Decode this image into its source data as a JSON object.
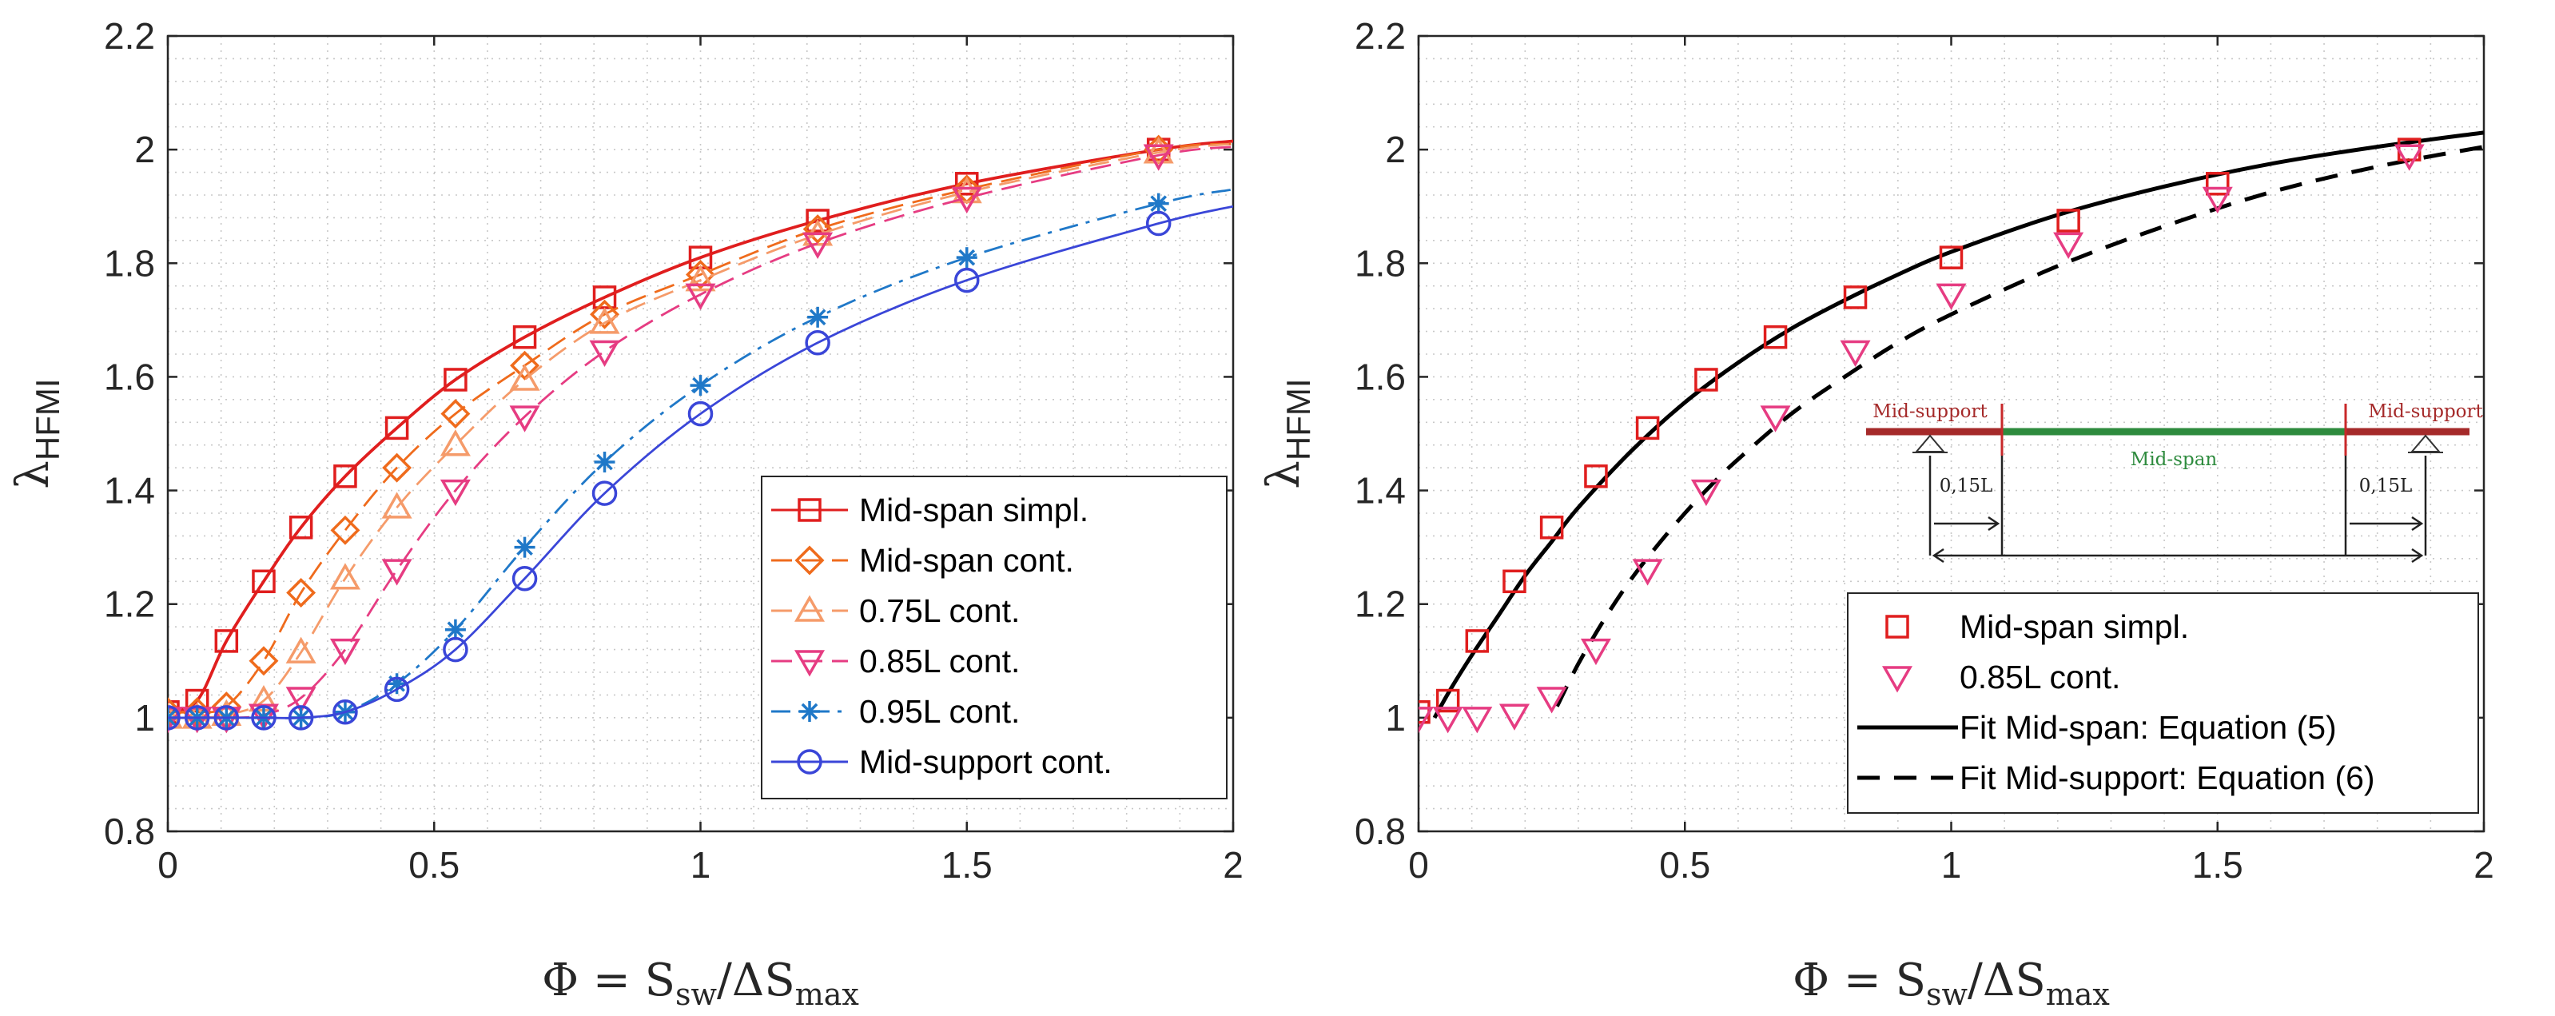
{
  "chart_data": [
    {
      "type": "line",
      "panel": "left",
      "xlabel": {
        "phi": "Φ",
        "eq": " = S",
        "sw": "sw",
        "slash": "/ΔS",
        "max": "max"
      },
      "ylabel": {
        "lambda": "λ",
        "sub": "HFMI"
      },
      "xlim": [
        0,
        2
      ],
      "ylim": [
        0.8,
        2.2
      ],
      "xticks": [
        0,
        0.5,
        1,
        1.5,
        2
      ],
      "yticks": [
        0.8,
        1,
        1.2,
        1.4,
        1.6,
        1.8,
        2,
        2.2
      ],
      "grid": "dotted",
      "legend_position": "bottom-right",
      "x": [
        0,
        0.055,
        0.11,
        0.18,
        0.25,
        0.333,
        0.43,
        0.54,
        0.67,
        0.82,
        1.0,
        1.22,
        1.5,
        1.86
      ],
      "series": [
        {
          "name": "Mid-span simpl.",
          "color": "#e01e1e",
          "dash": "solid",
          "marker": "square",
          "values": [
            1.01,
            1.03,
            1.135,
            1.24,
            1.335,
            1.425,
            1.51,
            1.595,
            1.67,
            1.74,
            1.81,
            1.875,
            1.94,
            2.0
          ],
          "curve_end": 2.015
        },
        {
          "name": "Mid-span cont.",
          "color": "#ef6b1c",
          "dash": "long",
          "marker": "diamond",
          "values": [
            1.01,
            1.01,
            1.02,
            1.1,
            1.22,
            1.33,
            1.44,
            1.535,
            1.62,
            1.71,
            1.78,
            1.86,
            1.93,
            2.0
          ],
          "curve_end": 2.01
        },
        {
          "name": "0.75L cont.",
          "color": "#f59b6a",
          "dash": "long",
          "marker": "triangle-up",
          "values": [
            1.0,
            1.0,
            1.005,
            1.03,
            1.115,
            1.245,
            1.37,
            1.48,
            1.595,
            1.695,
            1.77,
            1.85,
            1.925,
            1.995
          ],
          "curve_end": 2.01
        },
        {
          "name": "0.85L cont.",
          "color": "#e63c82",
          "dash": "long",
          "marker": "triangle-down",
          "values": [
            1.0,
            1.0,
            1.0,
            1.005,
            1.035,
            1.12,
            1.26,
            1.4,
            1.53,
            1.645,
            1.745,
            1.835,
            1.915,
            1.99
          ],
          "curve_end": 2.005
        },
        {
          "name": "0.95L cont.",
          "color": "#1f78c8",
          "dash": "dashdot",
          "marker": "star",
          "values": [
            1.0,
            1.0,
            1.0,
            1.0,
            1.0,
            1.01,
            1.06,
            1.155,
            1.3,
            1.45,
            1.585,
            1.705,
            1.81,
            1.905
          ],
          "curve_end": 1.93
        },
        {
          "name": "Mid-support cont.",
          "color": "#3a46d8",
          "dash": "solid",
          "marker": "circle",
          "values": [
            1.0,
            1.0,
            1.0,
            1.0,
            1.0,
            1.01,
            1.05,
            1.12,
            1.245,
            1.395,
            1.535,
            1.66,
            1.77,
            1.87
          ],
          "curve_end": 1.9
        }
      ]
    },
    {
      "type": "scatter",
      "panel": "right",
      "xlabel": {
        "phi": "Φ",
        "eq": " = S",
        "sw": "sw",
        "slash": "/ΔS",
        "max": "max"
      },
      "ylabel": {
        "lambda": "λ",
        "sub": "HFMI"
      },
      "xlim": [
        0,
        2
      ],
      "ylim": [
        0.8,
        2.2
      ],
      "xticks": [
        0,
        0.5,
        1,
        1.5,
        2
      ],
      "yticks": [
        0.8,
        1,
        1.2,
        1.4,
        1.6,
        1.8,
        2,
        2.2
      ],
      "grid": "dotted",
      "legend_position": "bottom-right",
      "x": [
        0,
        0.055,
        0.11,
        0.18,
        0.25,
        0.333,
        0.43,
        0.54,
        0.67,
        0.82,
        1.0,
        1.22,
        1.5,
        1.86
      ],
      "series": [
        {
          "name": "Mid-span simpl.",
          "color": "#e01e1e",
          "marker": "square",
          "values": [
            1.01,
            1.03,
            1.135,
            1.24,
            1.335,
            1.425,
            1.51,
            1.595,
            1.67,
            1.74,
            1.81,
            1.875,
            1.94,
            2.0
          ]
        },
        {
          "name": "0.85L cont.",
          "color": "#e63c82",
          "marker": "triangle-down",
          "values": [
            1.0,
            1.0,
            1.0,
            1.005,
            1.035,
            1.12,
            1.26,
            1.4,
            1.53,
            1.645,
            1.745,
            1.835,
            1.915,
            1.99
          ]
        }
      ],
      "fits": [
        {
          "name": "Fit Mid-span: Equation (5)",
          "color": "#000000",
          "dash": "solid",
          "x": [
            0.03,
            0.06,
            0.1,
            0.15,
            0.2,
            0.25,
            0.3,
            0.4,
            0.5,
            0.6,
            0.7,
            0.8,
            0.9,
            1.0,
            1.2,
            1.4,
            1.6,
            1.8,
            2.0
          ],
          "y": [
            1.0,
            1.05,
            1.11,
            1.18,
            1.25,
            1.31,
            1.37,
            1.47,
            1.555,
            1.625,
            1.685,
            1.735,
            1.78,
            1.82,
            1.885,
            1.935,
            1.975,
            2.005,
            2.03
          ]
        },
        {
          "name": "Fit Mid-support: Equation (6)",
          "color": "#000000",
          "dash": "dashed",
          "x": [
            0.26,
            0.3,
            0.35,
            0.4,
            0.45,
            0.5,
            0.55,
            0.6,
            0.7,
            0.8,
            0.9,
            1.0,
            1.2,
            1.4,
            1.6,
            1.8,
            2.0
          ],
          "y": [
            1.02,
            1.095,
            1.175,
            1.245,
            1.305,
            1.36,
            1.41,
            1.455,
            1.535,
            1.6,
            1.66,
            1.71,
            1.795,
            1.865,
            1.925,
            1.97,
            2.005
          ]
        }
      ],
      "inset": {
        "mid_support_label": "Mid-support",
        "mid_span_label": "Mid-span",
        "dim_label": "0,15L",
        "beam_end_color": "#a52a2a",
        "beam_mid_color": "#2e8b3e"
      }
    }
  ]
}
